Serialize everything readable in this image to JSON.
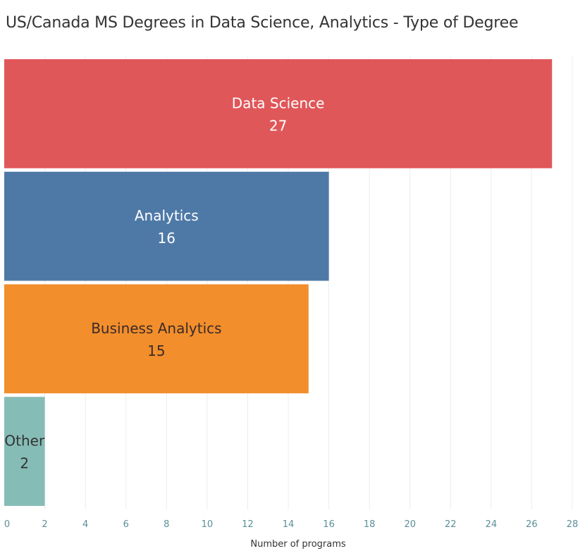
{
  "chart_data": {
    "type": "bar",
    "orientation": "horizontal",
    "title": "US/Canada MS Degrees in Data Science, Analytics - Type of Degree",
    "xlabel": "Number of programs",
    "ylabel": "",
    "xlim": [
      0,
      28
    ],
    "x_ticks": [
      0,
      2,
      4,
      6,
      8,
      10,
      12,
      14,
      16,
      18,
      20,
      22,
      24,
      26,
      28
    ],
    "categories": [
      "Data Science",
      "Analytics",
      "Business Analytics",
      "Other"
    ],
    "values": [
      27,
      16,
      15,
      2
    ],
    "colors": [
      "#e05759",
      "#4e79a7",
      "#f28e2b",
      "#86bcb6"
    ],
    "label_colors": [
      "#ffffff",
      "#ffffff",
      "#3b2a2a",
      "#333333"
    ],
    "grid": true,
    "legend": "none"
  }
}
